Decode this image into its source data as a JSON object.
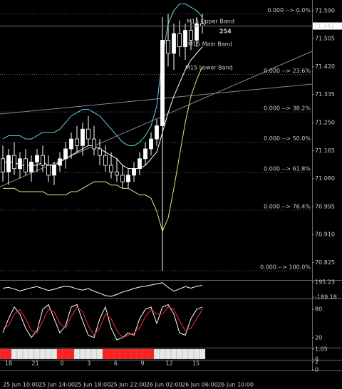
{
  "chart_data": [
    {
      "type": "candlestick",
      "color": "#ffffff",
      "open": [
        71.14,
        71.1,
        71.15,
        71.11,
        71.14,
        71.1,
        71.13,
        71.15,
        71.12,
        71.09,
        71.12,
        71.14,
        71.17,
        71.2,
        71.18,
        71.23,
        71.2,
        71.17,
        71.15,
        71.12,
        71.1,
        71.09,
        71.07,
        71.09,
        71.11,
        71.14,
        71.17,
        71.2,
        71.24,
        71.5,
        71.46,
        71.52,
        71.48,
        71.53,
        71.5,
        71.55
      ],
      "high": [
        71.18,
        71.17,
        71.19,
        71.16,
        71.17,
        71.15,
        71.17,
        71.18,
        71.15,
        71.13,
        71.16,
        71.19,
        71.22,
        71.24,
        71.25,
        71.27,
        71.24,
        71.2,
        71.18,
        71.16,
        71.14,
        71.12,
        71.11,
        71.13,
        71.16,
        71.19,
        71.22,
        71.26,
        71.57,
        71.58,
        71.55,
        71.56,
        71.55,
        71.56,
        71.57,
        71.58
      ],
      "low": [
        71.07,
        71.06,
        71.09,
        71.08,
        71.09,
        71.07,
        71.1,
        71.1,
        71.07,
        71.06,
        71.1,
        71.11,
        71.14,
        71.16,
        71.15,
        71.18,
        71.15,
        71.12,
        71.1,
        71.08,
        71.07,
        71.05,
        71.05,
        71.07,
        71.09,
        71.12,
        71.15,
        71.18,
        70.8,
        71.42,
        71.41,
        71.45,
        71.44,
        71.47,
        71.48,
        71.52
      ],
      "close": [
        71.1,
        71.15,
        71.11,
        71.14,
        71.1,
        71.13,
        71.15,
        71.12,
        71.09,
        71.12,
        71.14,
        71.17,
        71.2,
        71.18,
        71.23,
        71.2,
        71.17,
        71.15,
        71.12,
        71.1,
        71.09,
        71.07,
        71.09,
        71.11,
        71.14,
        71.17,
        71.2,
        71.24,
        71.5,
        71.46,
        71.52,
        71.48,
        71.53,
        71.5,
        71.55,
        71.543
      ],
      "ylim": [
        70.774,
        71.622
      ],
      "yticks": [
        {
          "value": 71.59,
          "label": "71.590"
        },
        {
          "value": 71.505,
          "label": "71.505"
        },
        {
          "value": 71.42,
          "label": "71.420"
        },
        {
          "value": 71.335,
          "label": "71.335"
        },
        {
          "value": 71.25,
          "label": "71.250"
        },
        {
          "value": 71.165,
          "label": "71.165"
        },
        {
          "value": 71.08,
          "label": "71.080"
        },
        {
          "value": 70.995,
          "label": "70.995"
        },
        {
          "value": 70.91,
          "label": "70.910"
        },
        {
          "value": 70.825,
          "label": "70.825"
        }
      ],
      "series": [
        {
          "name": "M15 Upper Band",
          "color": "#5fd0e6",
          "values": [
            71.2,
            71.21,
            71.21,
            71.21,
            71.2,
            71.2,
            71.21,
            71.22,
            71.22,
            71.22,
            71.23,
            71.25,
            71.27,
            71.28,
            71.29,
            71.29,
            71.28,
            71.27,
            71.25,
            71.23,
            71.21,
            71.19,
            71.18,
            71.18,
            71.19,
            71.21,
            71.24,
            71.3,
            71.45,
            71.55,
            71.59,
            71.61,
            71.61,
            71.6,
            71.59,
            71.57
          ]
        },
        {
          "name": "M15 Main Band",
          "color": "#ffffff",
          "values": [
            71.13,
            71.13,
            71.13,
            71.12,
            71.12,
            71.12,
            71.12,
            71.13,
            71.12,
            71.12,
            71.13,
            71.14,
            71.15,
            71.16,
            71.17,
            71.18,
            71.18,
            71.17,
            71.16,
            71.15,
            71.14,
            71.12,
            71.11,
            71.11,
            71.11,
            71.12,
            71.14,
            71.16,
            71.22,
            71.28,
            71.33,
            71.37,
            71.41,
            71.44,
            71.46,
            71.48
          ]
        },
        {
          "name": "M15 Lower Band",
          "color": "#e8e48a",
          "values": [
            71.05,
            71.05,
            71.05,
            71.04,
            71.04,
            71.04,
            71.04,
            71.04,
            71.03,
            71.03,
            71.03,
            71.03,
            71.04,
            71.04,
            71.05,
            71.06,
            71.07,
            71.07,
            71.07,
            71.06,
            71.06,
            71.05,
            71.05,
            71.04,
            71.03,
            71.03,
            71.02,
            70.98,
            70.92,
            70.96,
            71.05,
            71.15,
            71.25,
            71.33,
            71.38,
            71.42
          ]
        }
      ],
      "annotations": [
        "254"
      ],
      "fibonacci": {
        "color": "#3fae3f",
        "levels": [
          0,
          23.6,
          38.2,
          50,
          61.8,
          76.4,
          100
        ],
        "labels": [
          "0.000 --> 0.0%",
          "0.000 --> 23.6%",
          "0.000 --> 38.2%",
          "0.000 --> 50.0%",
          "0.000 --> 61.8%",
          "0.000 --> 76.4%",
          "0.000 --> 100.0%"
        ]
      }
    },
    {
      "type": "line",
      "color": "#ffffff",
      "ylim": [
        -189.18,
        195.23
      ],
      "yticks": [
        195.23,
        -189.18
      ],
      "values": [
        40,
        60,
        20,
        -30,
        10,
        50,
        80,
        30,
        -20,
        10,
        60,
        90,
        70,
        20,
        -10,
        30,
        -40,
        -90,
        -150,
        -170,
        -120,
        -60,
        -20,
        30,
        70,
        90,
        120,
        150,
        180,
        60,
        -40,
        20,
        80,
        40,
        90,
        110
      ]
    },
    {
      "type": "line",
      "ylim": [
        0,
        100
      ],
      "yticks": [
        20,
        80
      ],
      "series": [
        {
          "color": "#ffffff",
          "values": [
            30,
            60,
            85,
            70,
            40,
            20,
            35,
            80,
            90,
            60,
            30,
            45,
            85,
            90,
            55,
            25,
            20,
            60,
            85,
            40,
            15,
            20,
            30,
            25,
            60,
            80,
            85,
            50,
            85,
            90,
            70,
            30,
            25,
            60,
            80,
            85
          ]
        },
        {
          "color": "#ff3030",
          "values": [
            40,
            45,
            70,
            80,
            60,
            35,
            30,
            55,
            80,
            75,
            50,
            40,
            65,
            85,
            75,
            45,
            25,
            40,
            70,
            60,
            35,
            20,
            25,
            30,
            40,
            65,
            80,
            70,
            70,
            85,
            80,
            55,
            35,
            40,
            60,
            80
          ]
        }
      ]
    },
    {
      "type": "strip",
      "colors": [
        "#e8e8e8",
        "#ff1f1f"
      ],
      "ylim": [
        0,
        1.05
      ],
      "yticks": [
        1.05,
        0
      ],
      "values": [
        1,
        1,
        0,
        0,
        0,
        0,
        0,
        0,
        0,
        0,
        1,
        1,
        1,
        0,
        0,
        0,
        0,
        0,
        1,
        1,
        1,
        1,
        1,
        1,
        1,
        1,
        1,
        0,
        0,
        0,
        0,
        0,
        0,
        0,
        0,
        0
      ]
    },
    {
      "type": "line",
      "ylim": [
        0,
        2
      ],
      "yticks": [
        2,
        0
      ]
    }
  ],
  "time_axis": {
    "hours": [
      "18",
      "21",
      "0",
      "3",
      "6",
      "9",
      "12",
      "15"
    ],
    "dates": [
      "25 Jun 10:00",
      "25 Jun 14:00",
      "25 Jun 18:00",
      "25 Jun 22:00",
      "26 Jun 02:00",
      "26 Jun 06:00",
      "26 Jun 10:00"
    ]
  }
}
